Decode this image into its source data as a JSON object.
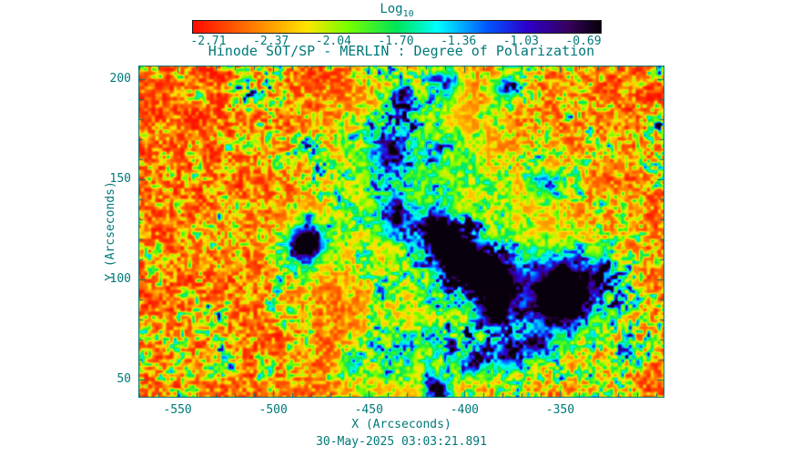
{
  "figure": {
    "text_color": "#007878",
    "background_color": "#ffffff"
  },
  "colorbar": {
    "label_main": "Log",
    "label_sub": "10",
    "tick_labels": [
      "-2.71",
      "-2.37",
      "-2.04",
      "-1.70",
      "-1.36",
      "-1.03",
      "-0.69"
    ]
  },
  "chart_data": {
    "type": "heatmap",
    "title": "Hinode SOT/SP - MERLIN : Degree of Polarization",
    "xlabel": "X (Arcseconds)",
    "ylabel": "Y (Arcseconds)",
    "timestamp": "30-May-2025 03:03:21.891",
    "xlim": [
      -570.5,
      -295.5
    ],
    "ylim": [
      40.9,
      206.9
    ],
    "xticks": [
      -550,
      -500,
      -450,
      -400,
      -350
    ],
    "yticks": [
      50,
      100,
      150,
      200
    ],
    "minor_tick_step": 10,
    "value_label": "Log10",
    "value_range": [
      -2.71,
      -0.69
    ],
    "colorbar_ticks": [
      -2.71,
      -2.37,
      -2.04,
      -1.7,
      -1.36,
      -1.03,
      -0.69
    ],
    "colormap_stops": [
      {
        "t": 0.0,
        "rgb": [
          255,
          10,
          0
        ]
      },
      {
        "t": 0.14,
        "rgb": [
          255,
          120,
          0
        ]
      },
      {
        "t": 0.28,
        "rgb": [
          255,
          230,
          0
        ]
      },
      {
        "t": 0.38,
        "rgb": [
          120,
          255,
          0
        ]
      },
      {
        "t": 0.5,
        "rgb": [
          0,
          230,
          90
        ]
      },
      {
        "t": 0.6,
        "rgb": [
          0,
          255,
          255
        ]
      },
      {
        "t": 0.72,
        "rgb": [
          0,
          90,
          255
        ]
      },
      {
        "t": 0.82,
        "rgb": [
          45,
          0,
          205
        ]
      },
      {
        "t": 0.92,
        "rgb": [
          55,
          0,
          95
        ]
      },
      {
        "t": 1.0,
        "rgb": [
          8,
          0,
          12
        ]
      }
    ],
    "features": [
      {
        "name": "active-region-halo",
        "x": -400,
        "y": 110,
        "sigma": 42,
        "amp": 0.24
      },
      {
        "name": "network-halo-upper",
        "x": -425,
        "y": 172,
        "sigma": 24,
        "amp": 0.2
      },
      {
        "name": "network-halo-left",
        "x": -455,
        "y": 148,
        "sigma": 18,
        "amp": 0.14
      },
      {
        "name": "network-halo-lower",
        "x": -430,
        "y": 55,
        "sigma": 18,
        "amp": 0.16
      },
      {
        "name": "sunspot-1-umbra",
        "x": -483,
        "y": 118,
        "sigma": 5.5,
        "amp": 0.95
      },
      {
        "name": "sunspot-1-penumbra",
        "x": -483,
        "y": 118,
        "sigma": 11,
        "amp": 0.28
      },
      {
        "name": "sunspot-2-umbra",
        "x": -414,
        "y": 124,
        "sigma": 6.5,
        "amp": 0.85
      },
      {
        "name": "sunspot-3-umbra",
        "x": -407,
        "y": 114,
        "sigma": 6,
        "amp": 0.8
      },
      {
        "name": "sunspot-4-umbra",
        "x": -398,
        "y": 107,
        "sigma": 8,
        "amp": 0.95
      },
      {
        "name": "sunspot-5-umbra",
        "x": -382,
        "y": 99,
        "sigma": 7.5,
        "amp": 0.9
      },
      {
        "name": "sunspot-6-umbra",
        "x": -384,
        "y": 84,
        "sigma": 6,
        "amp": 0.7
      },
      {
        "name": "sunspot-7-umbra",
        "x": -350,
        "y": 92,
        "sigma": 10,
        "amp": 1.05
      },
      {
        "name": "sunspot-7-penumbra",
        "x": -350,
        "y": 92,
        "sigma": 18,
        "amp": 0.33
      },
      {
        "name": "pore-a",
        "x": -433,
        "y": 190,
        "sigma": 5,
        "amp": 0.5
      },
      {
        "name": "pore-b",
        "x": -378,
        "y": 196,
        "sigma": 5,
        "amp": 0.55
      },
      {
        "name": "pore-c",
        "x": -440,
        "y": 163,
        "sigma": 6,
        "amp": 0.45
      },
      {
        "name": "pore-d",
        "x": -409,
        "y": 198,
        "sigma": 5,
        "amp": 0.5
      },
      {
        "name": "pore-e",
        "x": -436,
        "y": 130,
        "sigma": 7,
        "amp": 0.45
      },
      {
        "name": "pore-f",
        "x": -378,
        "y": 62,
        "sigma": 6,
        "amp": 0.6
      },
      {
        "name": "pore-g",
        "x": -395,
        "y": 58,
        "sigma": 5,
        "amp": 0.5
      },
      {
        "name": "pore-h",
        "x": -362,
        "y": 67,
        "sigma": 5,
        "amp": 0.5
      },
      {
        "name": "pore-i",
        "x": -414,
        "y": 44,
        "sigma": 5,
        "amp": 0.5
      },
      {
        "name": "pore-j",
        "x": -460,
        "y": 57,
        "sigma": 4,
        "amp": 0.4
      },
      {
        "name": "pore-k",
        "x": -357,
        "y": 148,
        "sigma": 6,
        "amp": 0.4
      },
      {
        "name": "network-patch-east",
        "x": -329,
        "y": 103,
        "sigma": 8,
        "amp": 0.28
      }
    ],
    "texture": {
      "octaves": [
        {
          "scale": 4,
          "weight": 0.45
        },
        {
          "scale": 11,
          "weight": 0.3
        },
        {
          "scale": 30,
          "weight": 0.25
        }
      ],
      "regional_scale": 80,
      "gamma": 2.6,
      "gain_base": 0.7,
      "gain_regional": 0.9
    }
  }
}
